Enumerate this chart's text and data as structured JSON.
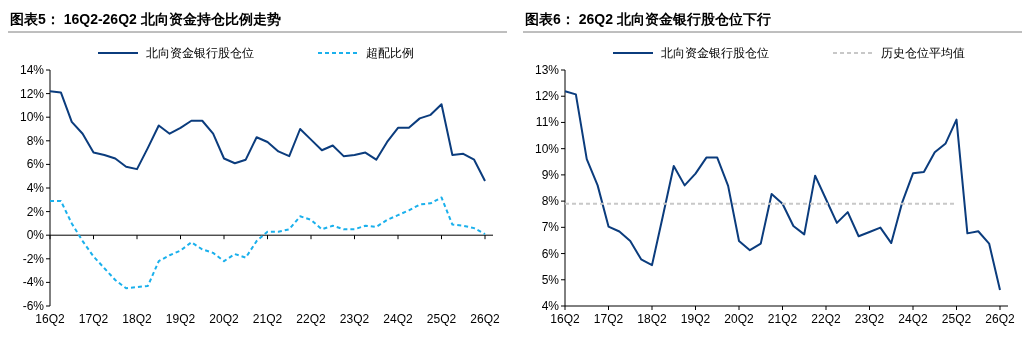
{
  "chart_data": [
    {
      "type": "line",
      "title": "图表5：  16Q2-26Q2 北向资金持仓比例走势",
      "categories": [
        "16Q2",
        null,
        null,
        null,
        "17Q2",
        null,
        null,
        null,
        "18Q2",
        null,
        null,
        null,
        "19Q2",
        null,
        null,
        null,
        "20Q2",
        null,
        null,
        null,
        "21Q2",
        null,
        null,
        null,
        "22Q2",
        null,
        null,
        null,
        "23Q2",
        null,
        null,
        null,
        "24Q2",
        null,
        null,
        null,
        "25Q2",
        null,
        null,
        null,
        "26Q2"
      ],
      "series": [
        {
          "name": "北向资金银行股仓位",
          "color": "#0b3c7d",
          "line_style": "solid",
          "values": [
            12.2,
            12.1,
            9.6,
            8.6,
            7.0,
            6.8,
            6.5,
            5.8,
            5.6,
            7.4,
            9.3,
            8.6,
            9.1,
            9.7,
            9.7,
            8.6,
            6.5,
            6.1,
            6.4,
            8.3,
            7.9,
            7.1,
            6.7,
            9.0,
            8.1,
            7.2,
            7.6,
            6.7,
            6.8,
            7.0,
            6.4,
            7.9,
            9.1,
            9.1,
            9.9,
            10.2,
            11.1,
            6.8,
            6.9,
            6.4,
            4.6
          ]
        },
        {
          "name": "超配比例",
          "color": "#1ab0ec",
          "line_style": "dashed",
          "values": [
            2.9,
            2.9,
            1.0,
            -0.5,
            -1.8,
            -2.8,
            -3.8,
            -4.5,
            -4.4,
            -4.3,
            -2.2,
            -1.7,
            -1.3,
            -0.6,
            -1.2,
            -1.5,
            -2.2,
            -1.6,
            -1.9,
            -0.5,
            0.3,
            0.3,
            0.5,
            1.6,
            1.3,
            0.5,
            0.8,
            0.5,
            0.5,
            0.8,
            0.7,
            1.3,
            1.7,
            2.1,
            2.6,
            2.7,
            3.2,
            0.9,
            0.8,
            0.6,
            0.1
          ]
        }
      ],
      "ylim": [
        -6,
        14
      ],
      "yticks": [
        {
          "value": -6,
          "label": "-6%"
        },
        {
          "value": -4,
          "label": "-4%"
        },
        {
          "value": -2,
          "label": "-2%"
        },
        {
          "value": 0,
          "label": "0%"
        },
        {
          "value": 2,
          "label": "2%"
        },
        {
          "value": 4,
          "label": "4%"
        },
        {
          "value": 6,
          "label": "6%"
        },
        {
          "value": 8,
          "label": "8%"
        },
        {
          "value": 10,
          "label": "10%"
        },
        {
          "value": 12,
          "label": "12%"
        },
        {
          "value": 14,
          "label": "14%"
        }
      ],
      "legend": "top",
      "marker": "none"
    },
    {
      "type": "line",
      "title": "图表6：  26Q2 北向资金银行股仓位下行",
      "categories": [
        "16Q2",
        null,
        null,
        null,
        "17Q2",
        null,
        null,
        null,
        "18Q2",
        null,
        null,
        null,
        "19Q2",
        null,
        null,
        null,
        "20Q2",
        null,
        null,
        null,
        "21Q2",
        null,
        null,
        null,
        "22Q2",
        null,
        null,
        null,
        "23Q2",
        null,
        null,
        null,
        "24Q2",
        null,
        null,
        null,
        "25Q2",
        null,
        null,
        null,
        "26Q2"
      ],
      "series": [
        {
          "name": "北向资金银行股仓位",
          "color": "#0b3c7d",
          "line_style": "solid",
          "values": [
            12.19,
            12.07,
            9.6,
            8.6,
            7.03,
            6.84,
            6.48,
            5.78,
            5.56,
            7.43,
            9.34,
            8.6,
            9.05,
            9.66,
            9.66,
            8.58,
            6.48,
            6.13,
            6.38,
            8.27,
            7.9,
            7.05,
            6.73,
            8.97,
            8.07,
            7.17,
            7.58,
            6.66,
            6.82,
            6.99,
            6.4,
            7.94,
            9.06,
            9.11,
            9.86,
            10.2,
            11.11,
            6.77,
            6.85,
            6.38,
            4.61
          ]
        },
        {
          "name": "历史仓位平均值",
          "color": "#c8c8c8",
          "line_style": "dashed",
          "values": [
            7.9,
            7.9,
            7.9,
            7.9,
            7.9,
            7.9,
            7.9,
            7.9,
            7.9,
            7.9,
            7.9,
            7.9,
            7.9,
            7.9,
            7.9,
            7.9,
            7.9,
            7.9,
            7.9,
            7.9,
            7.9,
            7.9,
            7.9,
            7.9,
            7.9,
            7.9,
            7.9,
            7.9,
            7.9,
            7.9,
            7.9,
            7.9,
            7.9,
            7.9,
            7.9,
            7.9,
            7.9,
            null,
            null,
            null,
            null
          ]
        }
      ],
      "ylim": [
        4,
        13
      ],
      "yticks": [
        {
          "value": 4,
          "label": "4%"
        },
        {
          "value": 5,
          "label": "5%"
        },
        {
          "value": 6,
          "label": "6%"
        },
        {
          "value": 7,
          "label": "7%"
        },
        {
          "value": 8,
          "label": "8%"
        },
        {
          "value": 9,
          "label": "9%"
        },
        {
          "value": 10,
          "label": "10%"
        },
        {
          "value": 11,
          "label": "11%"
        },
        {
          "value": 12,
          "label": "12%"
        },
        {
          "value": 13,
          "label": "13%"
        }
      ],
      "legend": "top",
      "marker": "none"
    }
  ]
}
